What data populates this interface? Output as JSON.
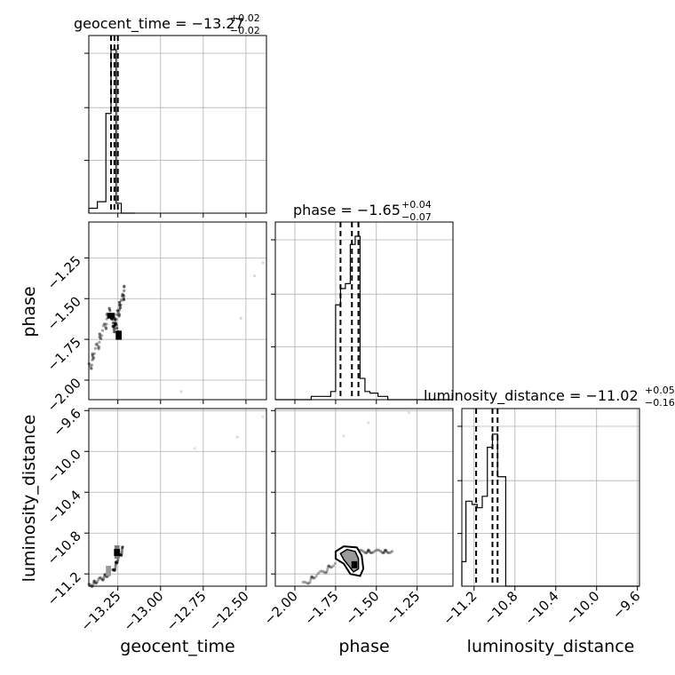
{
  "chart_data": {
    "type": "corner",
    "parameters": [
      "geocent_time",
      "phase",
      "luminosity_distance"
    ],
    "titles": [
      {
        "label": "geocent_time = −13.27",
        "plus": "+0.02",
        "minus": "−0.02"
      },
      {
        "label": "phase = −1.65",
        "plus": "+0.04",
        "minus": "−0.07"
      },
      {
        "label": "luminosity_distance = −11.02",
        "plus": "+0.05",
        "minus": "−0.16"
      }
    ],
    "ranges": {
      "geocent_time": [
        -13.42,
        -12.38
      ],
      "phase": [
        -2.12,
        -1.03
      ],
      "luminosity_distance": [
        -11.32,
        -9.58
      ]
    },
    "tick_labels": {
      "geocent_time": [
        "−13.25",
        "−13.00",
        "−12.75",
        "−12.50"
      ],
      "phase": [
        "−2.00",
        "−1.75",
        "−1.50",
        "−1.25"
      ],
      "luminosity_distance": [
        "−11.2",
        "−10.8",
        "−10.4",
        "−10.0",
        "−9.6"
      ]
    },
    "tick_values": {
      "geocent_time": [
        -13.25,
        -13.0,
        -12.75,
        -12.5
      ],
      "phase": [
        -2.0,
        -1.75,
        -1.5,
        -1.25
      ],
      "luminosity_distance": [
        -11.2,
        -10.8,
        -10.4,
        -10.0,
        -9.6
      ]
    },
    "histograms": {
      "geocent_time": {
        "edges": [
          -13.42,
          -13.37,
          -13.32,
          -13.29,
          -13.26,
          -13.23,
          -13.19,
          -13.15
        ],
        "counts": [
          0.03,
          0.07,
          0.61,
          1.0,
          0.06,
          0.0,
          0.0
        ]
      },
      "phase": {
        "edges": [
          -2.12,
          -1.9,
          -1.78,
          -1.75,
          -1.72,
          -1.69,
          -1.66,
          -1.63,
          -1.6,
          -1.57,
          -1.54,
          -1.49,
          -1.43,
          -1.03
        ],
        "counts": [
          0.0,
          0.02,
          0.05,
          0.58,
          0.68,
          0.71,
          0.95,
          1.0,
          0.13,
          0.05,
          0.04,
          0.02,
          0.0
        ]
      },
      "luminosity_distance": {
        "edges": [
          -11.32,
          -11.28,
          -11.22,
          -11.17,
          -11.12,
          -11.07,
          -11.02,
          -10.97,
          -10.89,
          -9.58
        ],
        "counts": [
          0.15,
          0.52,
          0.5,
          0.48,
          0.55,
          0.85,
          0.93,
          0.67,
          0.0
        ]
      }
    },
    "quantiles": {
      "geocent_time": [
        -13.29,
        -13.27,
        -13.25
      ],
      "phase": [
        -1.72,
        -1.65,
        -1.61
      ],
      "luminosity_distance": [
        -11.18,
        -11.02,
        -10.97
      ]
    },
    "grid": true
  },
  "axis_labels": {
    "x_geocent_time": "geocent_time",
    "x_phase": "phase",
    "x_luminosity_distance": "luminosity_distance",
    "y_phase": "phase",
    "y_luminosity_distance": "luminosity_distance"
  }
}
